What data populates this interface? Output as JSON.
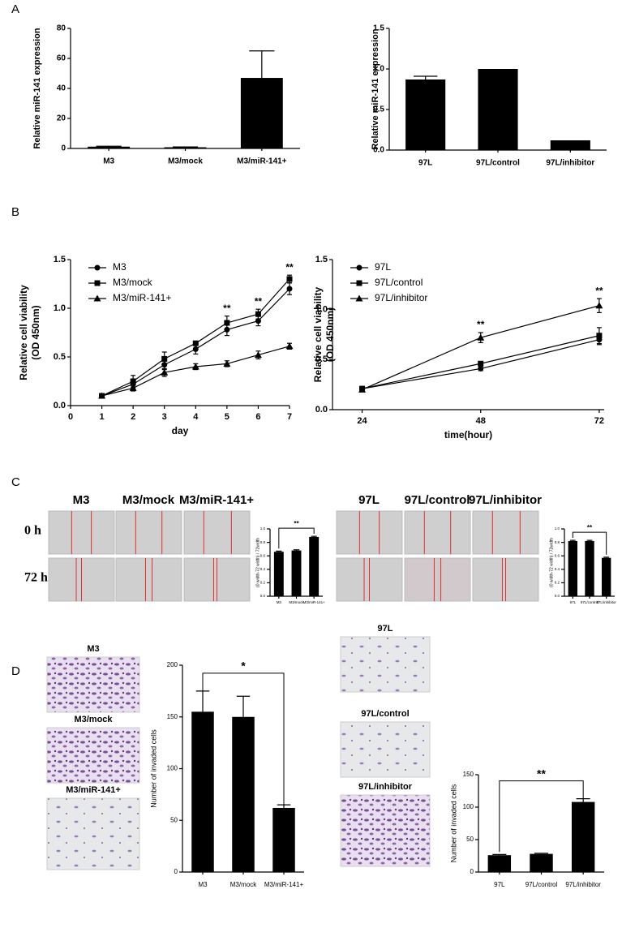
{
  "figure": {
    "panel_labels": [
      "A",
      "B",
      "C",
      "D"
    ],
    "c_time_labels": [
      "0 h",
      "72 h"
    ],
    "c_left_headers": [
      "M3",
      "M3/mock",
      "M3/miR-141+"
    ],
    "c_right_headers": [
      "97L",
      "97L/control",
      "97L/inhibitor"
    ],
    "d_left_captions": [
      "M3",
      "M3/mock",
      "M3/miR-141+"
    ],
    "d_right_captions": [
      "97L",
      "97L/control",
      "97L/inhibitor"
    ]
  },
  "chart_data": [
    {
      "type": "bar",
      "ylabel": "Relative miR-141 expression",
      "categories": [
        "M3",
        "M3/mock",
        "M3/miR-141+"
      ],
      "values": [
        1.2,
        0.8,
        47
      ],
      "errors": [
        0.3,
        0.2,
        18
      ],
      "color": "#000000",
      "ylim": [
        0,
        80
      ],
      "yticks": [
        0,
        20,
        40,
        60,
        80
      ]
    },
    {
      "type": "bar",
      "ylabel": "Relative miR-141 expression",
      "categories": [
        "97L",
        "97L/control",
        "97L/inhibitor"
      ],
      "values": [
        0.87,
        1.0,
        0.12
      ],
      "errors": [
        0.04,
        null,
        null
      ],
      "color": "#000000",
      "ylim": [
        0,
        1.5
      ],
      "yticks": [
        {
          "value": 0,
          "label": "0.0"
        },
        0.5,
        {
          "value": 1,
          "label": "1.0"
        },
        1.5
      ]
    },
    {
      "type": "line",
      "xlabel": "day",
      "ylabel": [
        "Relative cell viability",
        "(OD 450nm)"
      ],
      "legend": "upper left",
      "x": [
        1,
        2,
        3,
        4,
        5,
        6,
        7
      ],
      "xlim": [
        0,
        7
      ],
      "xticks": [
        0,
        1,
        2,
        3,
        4,
        5,
        6,
        7
      ],
      "ylim": [
        0,
        1.5
      ],
      "yticks": [
        {
          "value": 0,
          "label": "0.0"
        },
        0.5,
        {
          "value": 1,
          "label": "1.0"
        },
        1.5
      ],
      "series": [
        {
          "name": "M3",
          "color": "#000000",
          "marker": "circle",
          "values": [
            0.1,
            0.22,
            0.42,
            0.58,
            0.78,
            0.87,
            1.2
          ],
          "errors": [
            0.01,
            0.04,
            0.05,
            0.05,
            0.06,
            0.05,
            0.06
          ]
        },
        {
          "name": "M3/mock",
          "color": "#000000",
          "marker": "square",
          "values": [
            0.1,
            0.25,
            0.48,
            0.64,
            0.85,
            0.94,
            1.3
          ],
          "errors": [
            0.01,
            0.06,
            0.07,
            0.02,
            0.07,
            0.05,
            0.04
          ]
        },
        {
          "name": "M3/miR-141+",
          "color": "#000000",
          "marker": "triangle",
          "values": [
            0.1,
            0.18,
            0.34,
            0.4,
            0.43,
            0.52,
            0.61
          ],
          "errors": [
            0.01,
            0.03,
            0.04,
            0.03,
            0.03,
            0.04,
            0.03
          ]
        }
      ],
      "annotations": [
        {
          "text": "**",
          "x": 5
        },
        {
          "text": "**",
          "x": 6
        },
        {
          "text": "**",
          "x": 7
        }
      ]
    },
    {
      "type": "line",
      "xlabel": "time(hour)",
      "ylabel": [
        "Relative cell viability",
        "(OD 450nm)"
      ],
      "legend": "upper left",
      "x": [
        24,
        48,
        72
      ],
      "xlim": [
        18,
        73
      ],
      "xticks": [
        24,
        48,
        72
      ],
      "ylim": [
        0,
        1.5
      ],
      "yticks": [
        {
          "value": 0,
          "label": "0.0"
        },
        0.5,
        {
          "value": 1,
          "label": "1.0"
        },
        1.5
      ],
      "series": [
        {
          "name": "97L",
          "color": "#000000",
          "marker": "circle",
          "values": [
            0.21,
            0.41,
            0.7
          ],
          "errors": [
            0.02,
            0.02,
            0.05
          ]
        },
        {
          "name": "97L/control",
          "color": "#000000",
          "marker": "square",
          "values": [
            0.21,
            0.46,
            0.74
          ],
          "errors": [
            0.02,
            0.02,
            0.08
          ]
        },
        {
          "name": "97L/inhibitor",
          "color": "#000000",
          "marker": "triangle",
          "values": [
            0.2,
            0.72,
            1.04
          ],
          "errors": [
            0.02,
            0.05,
            0.07
          ]
        }
      ],
      "annotations": [
        {
          "text": "**",
          "x": 48
        },
        {
          "text": "**",
          "x": 72
        }
      ]
    },
    {
      "type": "bar",
      "ylabel": "(0 width-72 width) / 72width",
      "categories": [
        "M3",
        "M3/mock",
        "M3/miR-141+"
      ],
      "values": [
        0.66,
        0.68,
        0.88
      ],
      "errors": [
        0.01,
        0.01,
        0.01
      ],
      "color": "#000000",
      "ylim": [
        0,
        1
      ],
      "yticks": [
        {
          "value": 0,
          "label": "0.0"
        },
        0.2,
        0.4,
        0.6,
        0.8,
        {
          "value": 1,
          "label": "1.0"
        }
      ],
      "annotations": [
        {
          "text": "**",
          "between": [
            "M3",
            "M3/miR-141+"
          ]
        }
      ]
    },
    {
      "type": "bar",
      "ylabel": "(0 width-72 width) / 72width",
      "categories": [
        "97L",
        "97L/control",
        "97L/inhibitor"
      ],
      "values": [
        0.82,
        0.82,
        0.57
      ],
      "errors": [
        0.01,
        0.01,
        0.01
      ],
      "color": "#000000",
      "ylim": [
        0,
        1
      ],
      "yticks": [
        {
          "value": 0,
          "label": "0.0"
        },
        0.2,
        0.4,
        0.6,
        0.8,
        {
          "value": 1,
          "label": "1.0"
        }
      ],
      "annotations": [
        {
          "text": "**",
          "between": [
            "97L",
            "97L/inhibitor"
          ]
        }
      ]
    },
    {
      "type": "bar",
      "ylabel": "Number of invaded cells",
      "categories": [
        "M3",
        "M3/mock",
        "M3/miR-141+"
      ],
      "values": [
        155,
        150,
        62
      ],
      "errors": [
        20,
        20,
        3
      ],
      "color": "#000000",
      "ylim": [
        0,
        200
      ],
      "yticks": [
        0,
        50,
        100,
        150,
        200
      ],
      "annotations": [
        {
          "text": "*",
          "between": [
            "M3",
            "M3/miR-141+"
          ]
        }
      ]
    },
    {
      "type": "bar",
      "ylabel": "Number of invaded cells",
      "categories": [
        "97L",
        "97L/control",
        "97L/inhibitor"
      ],
      "values": [
        26,
        28,
        108
      ],
      "errors": [
        1,
        1,
        5
      ],
      "color": "#000000",
      "ylim": [
        0,
        150
      ],
      "yticks": [
        0,
        50,
        100,
        150
      ],
      "annotations": [
        {
          "text": "**",
          "between": [
            "97L",
            "97L/inhibitor"
          ]
        }
      ]
    }
  ]
}
